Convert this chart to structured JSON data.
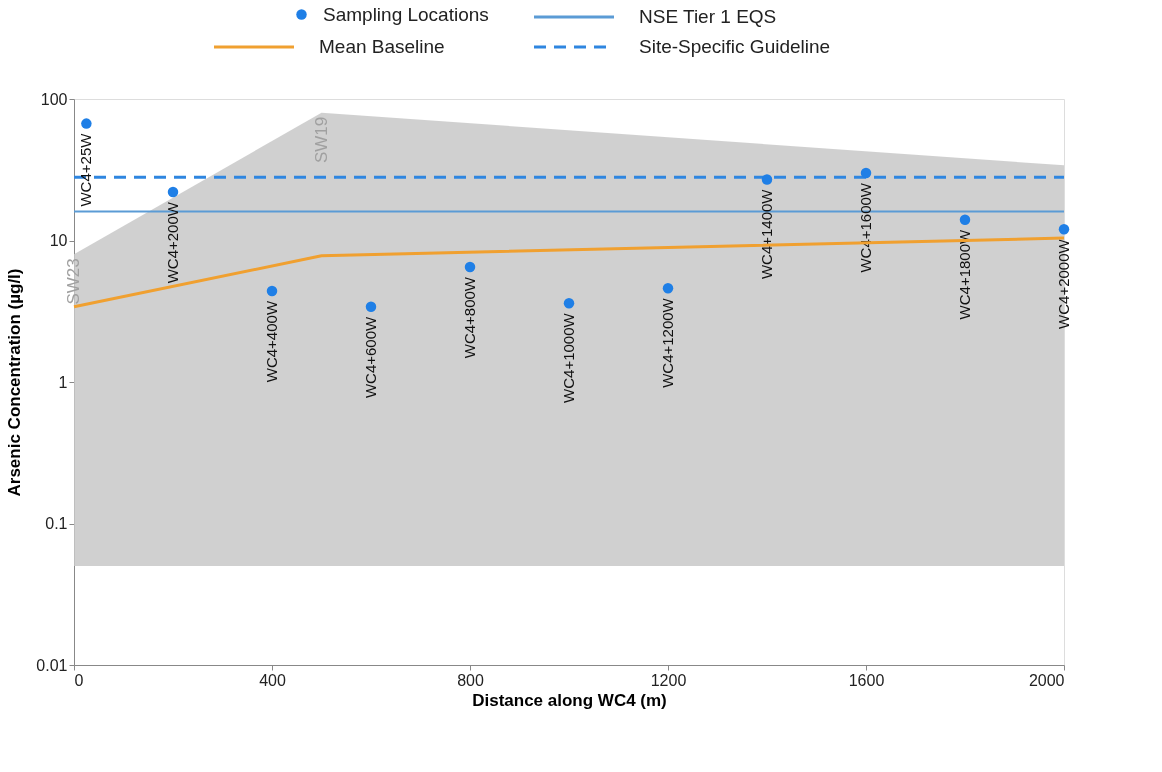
{
  "chart_data": {
    "type": "scatter",
    "xlabel": "Distance along WC4 (m)",
    "ylabel": "Arsenic Concentration (µg/l)",
    "xlim": [
      0,
      2000
    ],
    "xticks": [
      0,
      400,
      800,
      1200,
      1600,
      2000
    ],
    "ylim": [
      0.01,
      100
    ],
    "yticks": [
      0.01,
      0.1,
      1,
      10,
      100
    ],
    "log": true,
    "grid": false,
    "legend": "top",
    "series": [
      {
        "name": "Sampling Locations",
        "marker": "circle",
        "color": "#1f7fe6",
        "x": [
          25,
          200,
          400,
          600,
          800,
          1000,
          1200,
          1400,
          1600,
          1800,
          2000
        ],
        "values": [
          67,
          22,
          4.4,
          3.4,
          6.5,
          3.6,
          4.6,
          27,
          30,
          14,
          12
        ],
        "value_labels": [
          "WC4+25W",
          "WC4+200W",
          "WC4+400W",
          "WC4+600W",
          "WC4+800W",
          "WC4+1000W",
          "WC4+1200W",
          "WC4+1400W",
          "WC4+1600W",
          "WC4+1800W",
          "WC4+2000W"
        ]
      },
      {
        "name": "Mean Baseline",
        "type": "line",
        "marker": "none",
        "line_style": "solid",
        "color": "#f0a030",
        "x": [
          0,
          500,
          2000
        ],
        "values": [
          3.4,
          7.8,
          10.4
        ],
        "lower": [
          0.05,
          0.05,
          0.05
        ],
        "upper": [
          8,
          80,
          34
        ]
      }
    ],
    "ref_lines": [
      {
        "axis": "y",
        "value": 16,
        "label": "NSE Tier 1 EQS",
        "color": "#5b9bd5",
        "line_style": "solid"
      },
      {
        "axis": "y",
        "value": 28,
        "label": "Site-Specific Guideline",
        "color": "#2f86e0",
        "line_style": "dashed"
      }
    ],
    "annotations": [
      {
        "text": "SW23",
        "x": 0,
        "y": 8
      },
      {
        "text": "SW19",
        "x": 500,
        "y": 80
      }
    ]
  }
}
